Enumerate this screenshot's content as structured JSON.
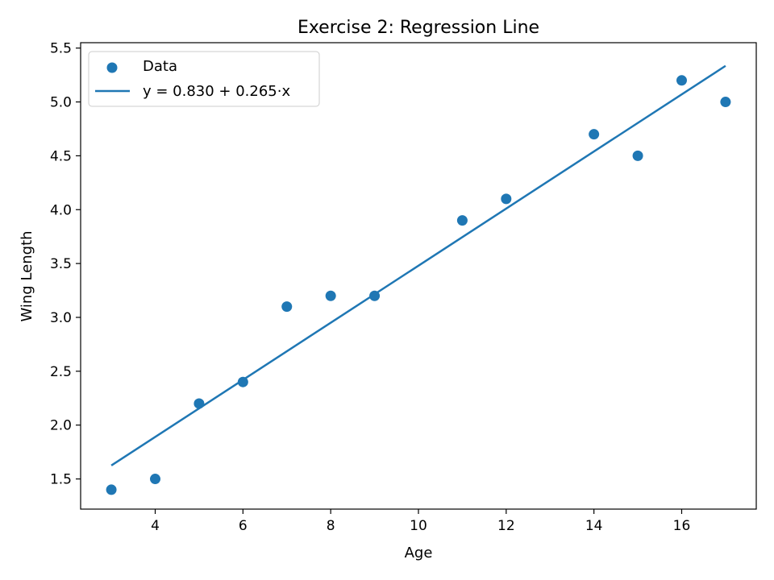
{
  "chart_data": {
    "type": "scatter",
    "title": "Exercise 2: Regression Line",
    "xlabel": "Age",
    "ylabel": "Wing Length",
    "xlim": [
      2.3,
      17.7
    ],
    "ylim": [
      1.22,
      5.55
    ],
    "xticks": [
      4,
      6,
      8,
      10,
      12,
      14,
      16
    ],
    "yticks": [
      1.5,
      2.0,
      2.5,
      3.0,
      3.5,
      4.0,
      4.5,
      5.0,
      5.5
    ],
    "grid": false,
    "legend_position": "upper-left",
    "series": [
      {
        "name": "Data",
        "kind": "scatter",
        "color": "#1f77b4",
        "x": [
          3,
          4,
          5,
          6,
          7,
          8,
          9,
          11,
          12,
          14,
          15,
          16,
          17
        ],
        "y": [
          1.4,
          1.5,
          2.2,
          2.4,
          3.1,
          3.2,
          3.2,
          3.9,
          4.1,
          4.7,
          4.5,
          5.2,
          5.0
        ]
      },
      {
        "name": "y = 0.830 + 0.265·x",
        "kind": "line",
        "color": "#1f77b4",
        "intercept": 0.83,
        "slope": 0.265,
        "x_range": [
          3,
          17
        ]
      }
    ]
  }
}
